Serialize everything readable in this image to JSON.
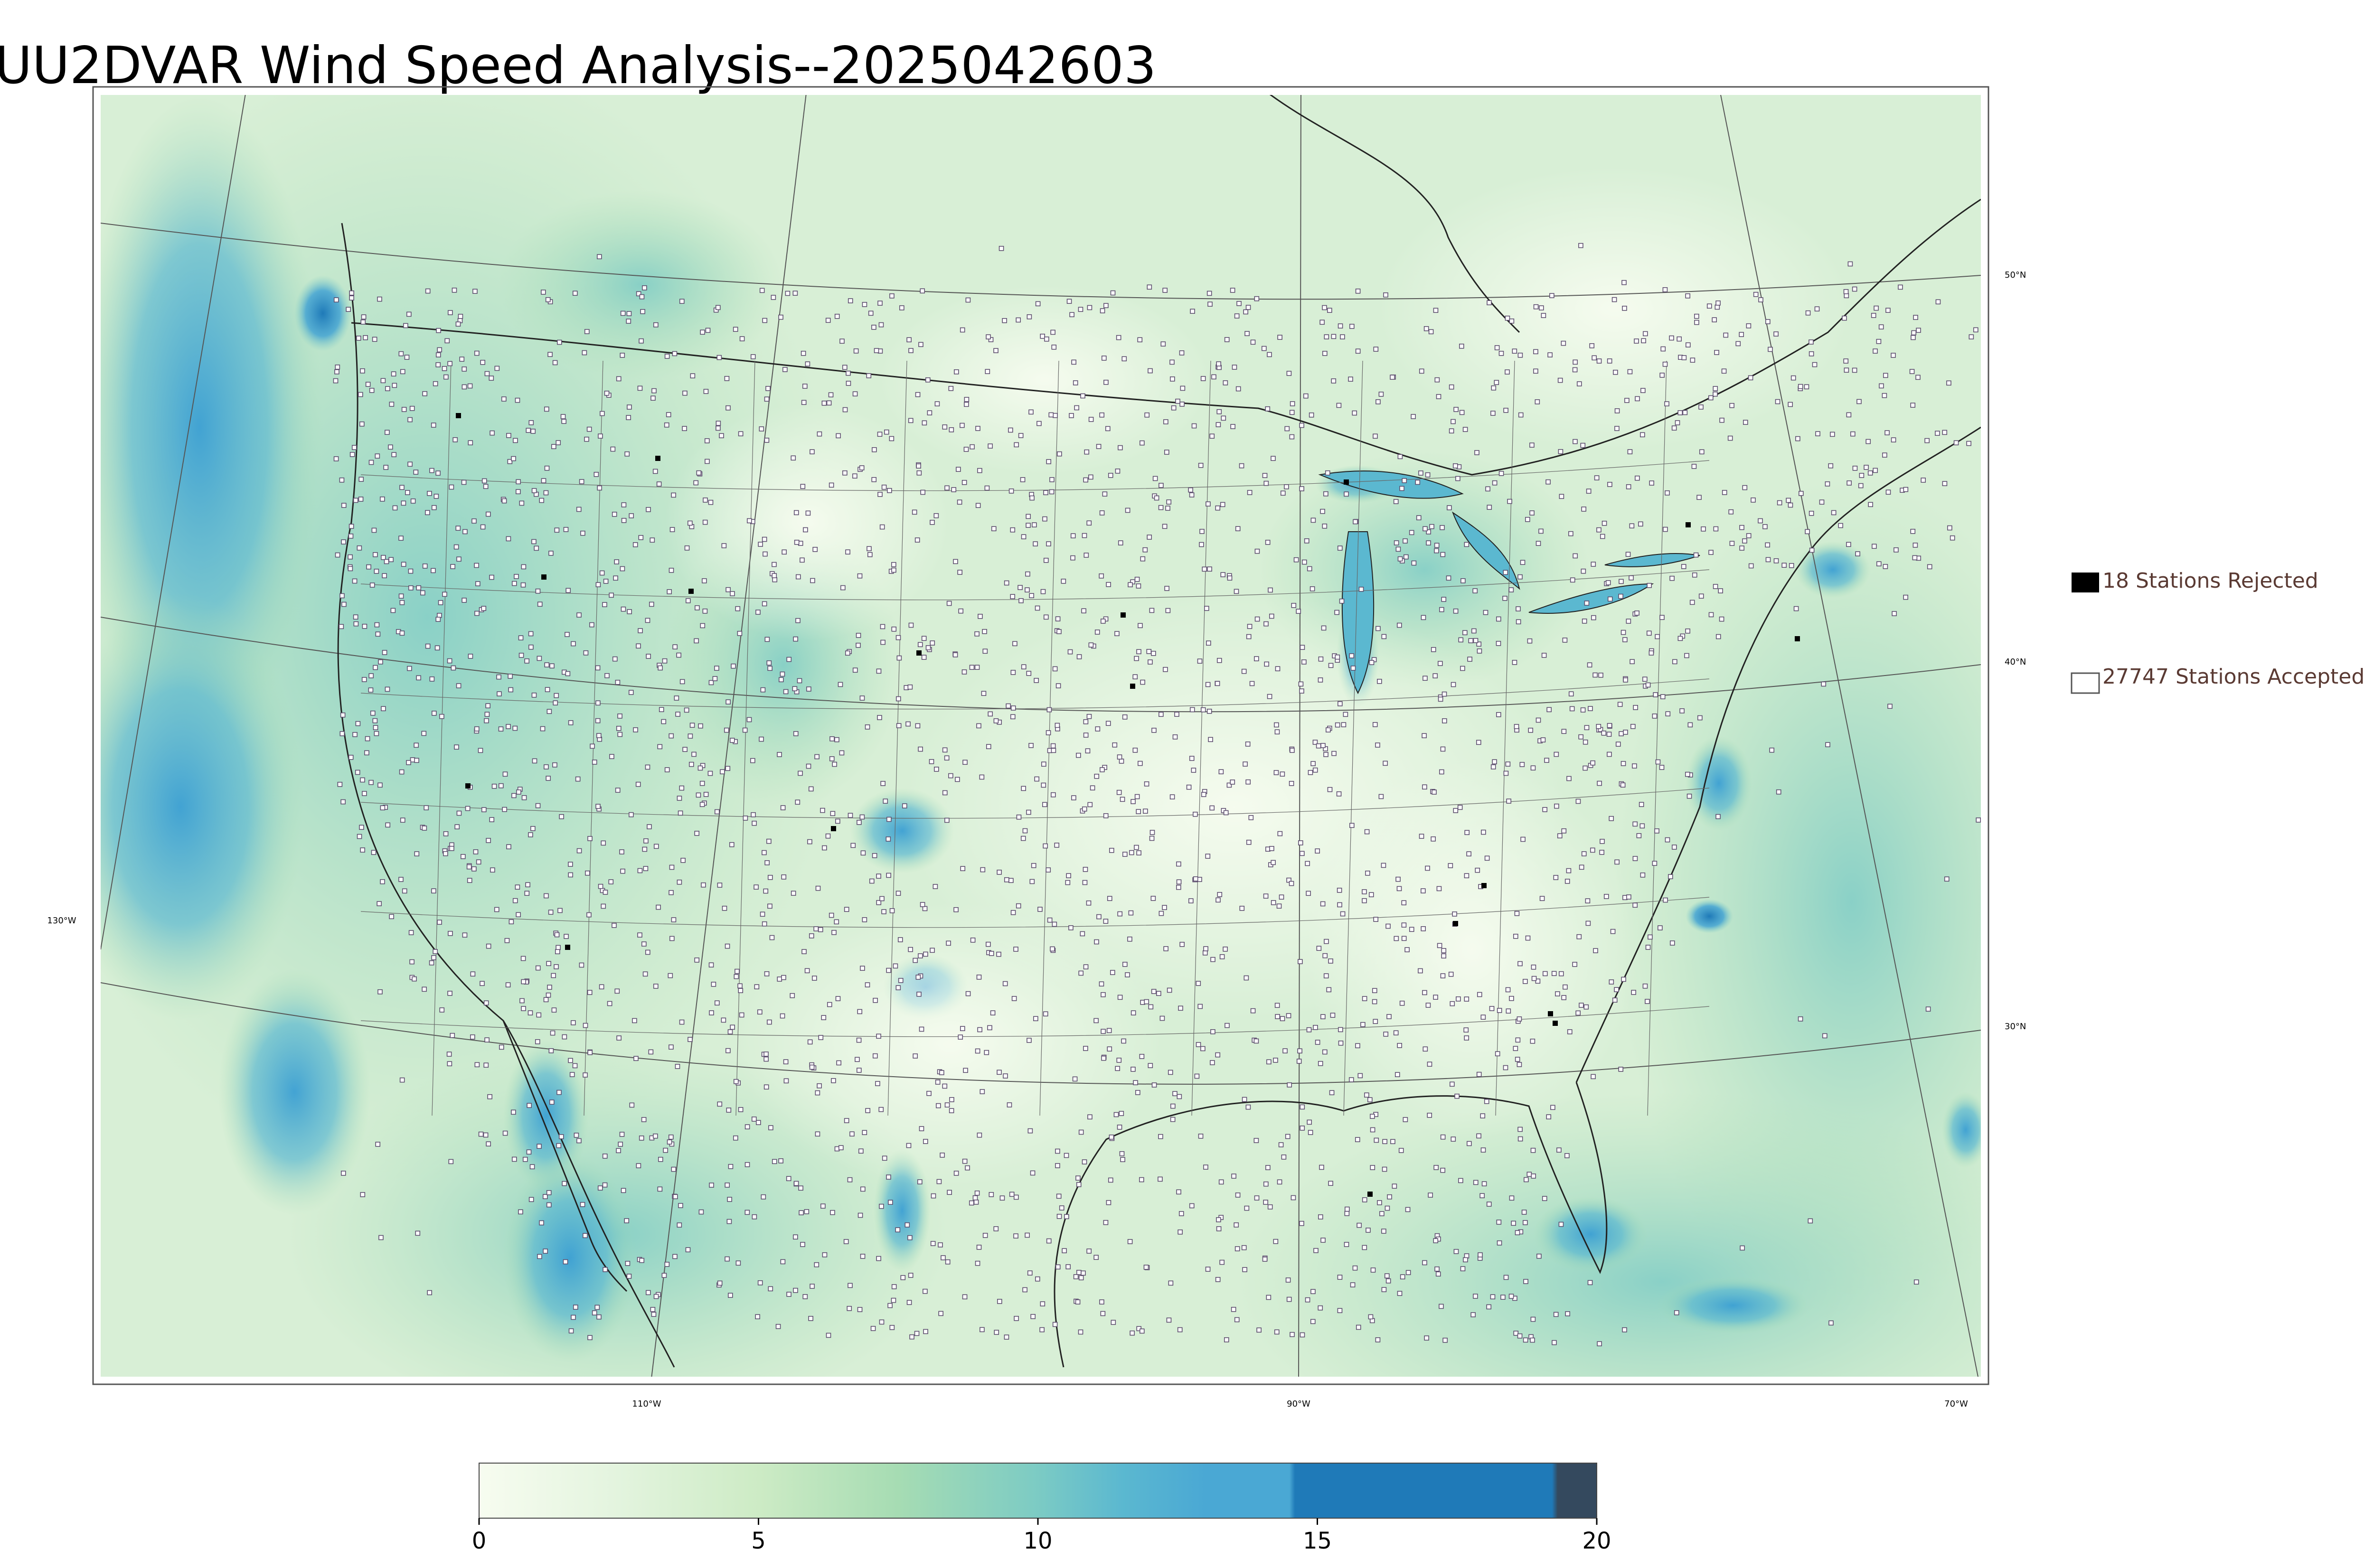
{
  "title": "UU2DVAR Wind Speed Analysis--2025042603",
  "map": {
    "region": "Continental United States",
    "projection": "Lambert Conformal",
    "parallels": [
      {
        "label": "50°N"
      },
      {
        "label": "40°N"
      },
      {
        "label": "30°N"
      }
    ],
    "meridians": [
      {
        "label": "130°W"
      },
      {
        "label": "110°W"
      },
      {
        "label": "90°W"
      },
      {
        "label": "70°W"
      }
    ]
  },
  "legend": {
    "rejected": {
      "label": "18 Stations Rejected",
      "fill": "#000000",
      "count": 18
    },
    "accepted": {
      "label": "27747 Stations Accepted",
      "fill": "#ffffff",
      "count": 27747
    },
    "text_color": "#5a3a33"
  },
  "colorbar": {
    "min": 0,
    "max": 20,
    "ticks": [
      "0",
      "5",
      "10",
      "15",
      "20"
    ],
    "stops": [
      {
        "value": 0,
        "color": "#f7fcf0"
      },
      {
        "value": 2.5,
        "color": "#e3f4de"
      },
      {
        "value": 5,
        "color": "#cdebc5"
      },
      {
        "value": 7.5,
        "color": "#a6dcb3"
      },
      {
        "value": 10,
        "color": "#7ccbc4"
      },
      {
        "value": 11.5,
        "color": "#5bb8d0"
      },
      {
        "value": 13,
        "color": "#4aa8d4"
      },
      {
        "value": 14.5,
        "color": "#4aa8d4"
      },
      {
        "value": 14.6,
        "color": "#1f7ab8"
      },
      {
        "value": 19.2,
        "color": "#1f7ab8"
      },
      {
        "value": 19.3,
        "color": "#34495e"
      },
      {
        "value": 20,
        "color": "#34495e"
      }
    ]
  },
  "colors": {
    "land_base": "#e6f4e1",
    "ocean_base": "#cfe9d6",
    "strong_wind": "#3b9fd3",
    "station_marker": "#5d4e6e",
    "border": "#333333"
  }
}
